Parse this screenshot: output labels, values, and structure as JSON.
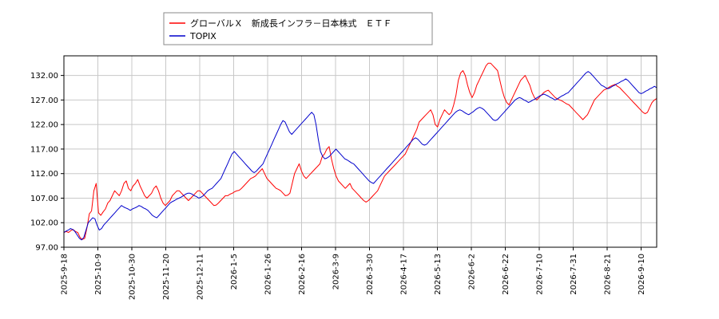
{
  "chart_data": {
    "type": "line",
    "title": "",
    "xlabel": "",
    "ylabel": "",
    "ylim": [
      97.0,
      136.0
    ],
    "yticks": [
      "97.00",
      "102.00",
      "107.00",
      "112.00",
      "117.00",
      "122.00",
      "127.00",
      "132.00"
    ],
    "xticks": [
      "2025-9-18",
      "2025-10-9",
      "2025-10-30",
      "2025-11-20",
      "2025-12-11",
      "2026-1-5",
      "2026-1-26",
      "2026-2-16",
      "2026-3-9",
      "2026-3-30",
      "2026-4-17",
      "2026-5-13",
      "2026-6-2",
      "2026-6-22",
      "2026-7-10",
      "2026-7-31",
      "2026-8-21",
      "2026-9-10"
    ],
    "grid": true,
    "legend": "top-left",
    "series": [
      {
        "name": "グローバルＸ　新成長インフラ－日本株式　ＥＴＦ",
        "color": "#ff0000",
        "values": [
          100.0,
          100.2,
          100.0,
          100.4,
          100.6,
          100.2,
          100.0,
          99.0,
          98.6,
          98.8,
          101.0,
          103.8,
          104.4,
          108.5,
          110.0,
          104.0,
          103.5,
          104.2,
          104.8,
          106.0,
          106.5,
          107.5,
          108.5,
          108.0,
          107.5,
          108.5,
          110.0,
          110.5,
          109.0,
          108.5,
          109.5,
          110.0,
          110.8,
          109.5,
          108.5,
          107.5,
          107.0,
          107.5,
          108.0,
          109.0,
          109.5,
          108.5,
          107.0,
          106.0,
          105.5,
          106.0,
          106.5,
          107.5,
          108.0,
          108.5,
          108.5,
          108.0,
          107.5,
          107.0,
          106.5,
          107.0,
          107.5,
          108.0,
          108.5,
          108.5,
          108.0,
          107.5,
          107.0,
          106.5,
          106.0,
          105.5,
          105.6,
          106.0,
          106.5,
          107.0,
          107.5,
          107.5,
          107.8,
          108.0,
          108.3,
          108.5,
          108.6,
          109.0,
          109.5,
          110.0,
          110.5,
          111.0,
          111.2,
          111.5,
          112.0,
          112.5,
          113.0,
          112.0,
          111.0,
          110.5,
          110.0,
          109.5,
          109.0,
          108.8,
          108.5,
          108.0,
          107.5,
          107.6,
          108.0,
          110.0,
          112.0,
          113.0,
          114.0,
          112.5,
          111.5,
          111.0,
          111.5,
          112.0,
          112.5,
          113.0,
          113.5,
          114.0,
          115.5,
          116.0,
          117.0,
          117.5,
          115.0,
          113.0,
          111.5,
          110.5,
          110.0,
          109.5,
          109.0,
          109.5,
          110.0,
          109.0,
          108.5,
          108.0,
          107.5,
          107.0,
          106.5,
          106.2,
          106.5,
          107.0,
          107.5,
          108.0,
          108.5,
          109.5,
          110.5,
          111.5,
          112.0,
          112.5,
          113.0,
          113.5,
          114.0,
          114.5,
          115.0,
          115.5,
          116.0,
          117.0,
          118.0,
          119.0,
          120.0,
          121.0,
          122.5,
          123.0,
          123.5,
          124.0,
          124.5,
          125.0,
          124.0,
          122.0,
          121.5,
          123.0,
          124.0,
          125.0,
          124.5,
          124.0,
          124.5,
          126.0,
          128.0,
          131.0,
          132.5,
          133.0,
          132.0,
          130.0,
          128.5,
          127.5,
          128.5,
          130.0,
          131.0,
          132.0,
          133.0,
          134.0,
          134.5,
          134.5,
          134.0,
          133.5,
          133.0,
          131.0,
          129.0,
          127.5,
          126.5,
          126.0,
          127.0,
          128.0,
          129.0,
          130.0,
          131.0,
          131.5,
          132.0,
          131.0,
          130.0,
          128.5,
          127.5,
          127.0,
          127.5,
          128.0,
          128.5,
          128.8,
          129.0,
          128.5,
          128.0,
          127.5,
          127.2,
          127.0,
          126.8,
          126.5,
          126.2,
          126.0,
          125.5,
          125.0,
          124.5,
          124.0,
          123.5,
          123.0,
          123.5,
          124.0,
          125.0,
          126.0,
          127.0,
          127.5,
          128.0,
          128.5,
          129.0,
          129.2,
          129.5,
          129.8,
          130.0,
          130.2,
          129.8,
          129.5,
          129.0,
          128.5,
          128.0,
          127.5,
          127.0,
          126.5,
          126.0,
          125.5,
          125.0,
          124.5,
          124.2,
          124.5,
          125.5,
          126.5,
          127.0,
          127.3
        ]
      },
      {
        "name": "TOPIX",
        "color": "#0000cc",
        "values": [
          100.0,
          100.3,
          100.5,
          100.8,
          100.6,
          100.2,
          99.5,
          98.8,
          98.5,
          99.0,
          100.5,
          102.0,
          102.5,
          103.0,
          102.8,
          101.5,
          100.5,
          100.8,
          101.5,
          102.0,
          102.5,
          103.0,
          103.5,
          104.0,
          104.5,
          105.0,
          105.5,
          105.2,
          105.0,
          104.8,
          104.5,
          104.8,
          105.0,
          105.2,
          105.5,
          105.3,
          105.0,
          104.8,
          104.5,
          104.0,
          103.5,
          103.2,
          103.0,
          103.5,
          104.0,
          104.5,
          105.0,
          105.5,
          106.0,
          106.3,
          106.5,
          106.8,
          107.0,
          107.2,
          107.5,
          107.8,
          108.0,
          108.0,
          107.8,
          107.5,
          107.3,
          107.0,
          107.2,
          107.5,
          108.0,
          108.5,
          108.8,
          109.0,
          109.5,
          110.0,
          110.5,
          111.0,
          112.0,
          113.0,
          114.0,
          115.0,
          116.0,
          116.5,
          116.0,
          115.5,
          115.0,
          114.5,
          114.0,
          113.5,
          113.0,
          112.5,
          112.2,
          112.5,
          113.0,
          113.5,
          114.0,
          115.0,
          116.0,
          117.0,
          118.0,
          119.0,
          120.0,
          121.0,
          122.0,
          122.8,
          122.5,
          121.5,
          120.5,
          120.0,
          120.5,
          121.0,
          121.5,
          122.0,
          122.5,
          123.0,
          123.5,
          124.0,
          124.5,
          124.0,
          122.0,
          119.0,
          116.5,
          115.5,
          115.0,
          115.2,
          115.5,
          116.0,
          116.5,
          117.0,
          116.5,
          116.0,
          115.5,
          115.0,
          114.8,
          114.5,
          114.2,
          114.0,
          113.5,
          113.0,
          112.5,
          112.0,
          111.5,
          111.0,
          110.5,
          110.2,
          110.0,
          110.5,
          111.0,
          111.5,
          112.0,
          112.5,
          113.0,
          113.5,
          114.0,
          114.5,
          115.0,
          115.5,
          116.0,
          116.5,
          117.0,
          117.5,
          118.0,
          118.5,
          119.0,
          119.3,
          119.0,
          118.5,
          118.0,
          117.8,
          118.0,
          118.5,
          119.0,
          119.5,
          120.0,
          120.5,
          121.0,
          121.5,
          122.0,
          122.5,
          123.0,
          123.5,
          124.0,
          124.5,
          124.8,
          125.0,
          124.8,
          124.5,
          124.2,
          124.0,
          124.3,
          124.6,
          125.0,
          125.3,
          125.5,
          125.3,
          125.0,
          124.5,
          124.0,
          123.5,
          123.0,
          122.8,
          123.0,
          123.5,
          124.0,
          124.5,
          125.0,
          125.5,
          126.0,
          126.5,
          127.0,
          127.3,
          127.5,
          127.3,
          127.0,
          126.8,
          126.5,
          126.7,
          127.0,
          127.2,
          127.5,
          127.8,
          128.0,
          128.2,
          128.0,
          127.8,
          127.5,
          127.3,
          127.0,
          127.2,
          127.5,
          127.8,
          128.0,
          128.3,
          128.5,
          129.0,
          129.5,
          130.0,
          130.5,
          131.0,
          131.5,
          132.0,
          132.5,
          132.8,
          132.5,
          132.0,
          131.5,
          131.0,
          130.5,
          130.0,
          129.8,
          129.5,
          129.3,
          129.5,
          129.8,
          130.0,
          130.3,
          130.5,
          130.8,
          131.0,
          131.3,
          131.0,
          130.5,
          130.0,
          129.5,
          129.0,
          128.5,
          128.3,
          128.5,
          128.8,
          129.0,
          129.3,
          129.5,
          129.8,
          129.5
        ]
      }
    ]
  }
}
